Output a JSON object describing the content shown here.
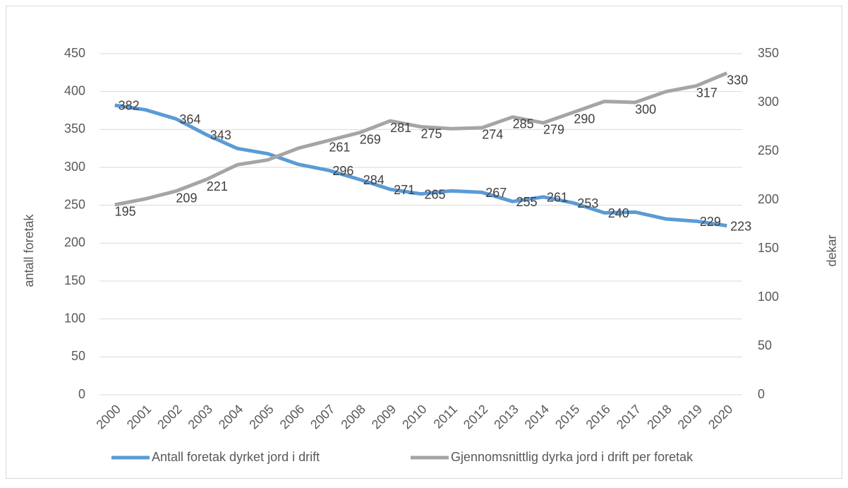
{
  "chart_data": {
    "type": "line",
    "x_categories_note": null,
    "categories": [
      "2000",
      "2001",
      "2002",
      "2003",
      "2004",
      "2005",
      "2006",
      "2007",
      "2008",
      "2009",
      "2010",
      "2011",
      "2012",
      "2013",
      "2014",
      "2015",
      "2016",
      "2017",
      "2018",
      "2019",
      "2020"
    ],
    "ylabel": "antall foretak",
    "y2label": "dekar",
    "ylim": [
      0,
      450
    ],
    "yticks": [
      0,
      50,
      100,
      150,
      200,
      250,
      300,
      350,
      400,
      450
    ],
    "y2lim": [
      0,
      350
    ],
    "y2ticks": [
      0,
      50,
      100,
      150,
      200,
      250,
      300,
      350
    ],
    "grid": true,
    "legend": "bottom",
    "series": [
      {
        "name": "Antall foretak dyrket jord i drift",
        "color": "#5b9bd5",
        "values": [
          382,
          376,
          364,
          343,
          325,
          318,
          304,
          296,
          284,
          271,
          265,
          269,
          267,
          255,
          261,
          253,
          240,
          241,
          232,
          229,
          223
        ],
        "value_labels": [
          "382",
          null,
          "364",
          "343",
          null,
          null,
          null,
          "296",
          "284",
          "271",
          "265",
          null,
          "267",
          "255",
          "261",
          "253",
          "240",
          null,
          null,
          "229",
          "223"
        ]
      },
      {
        "name": "Gjennomsnittlig dyrka jord i drift per foretak",
        "color": "#a5a5a5",
        "axis": "y2",
        "values": [
          195,
          201,
          209,
          221,
          236,
          241,
          253,
          261,
          269,
          281,
          275,
          273,
          274,
          285,
          279,
          290,
          301,
          300,
          311,
          317,
          330
        ],
        "value_labels": [
          "195",
          null,
          "209",
          "221",
          null,
          null,
          null,
          "261",
          "269",
          "281",
          "275",
          null,
          "274",
          "285",
          "279",
          "290",
          null,
          "300",
          null,
          "317",
          "330"
        ]
      }
    ]
  }
}
